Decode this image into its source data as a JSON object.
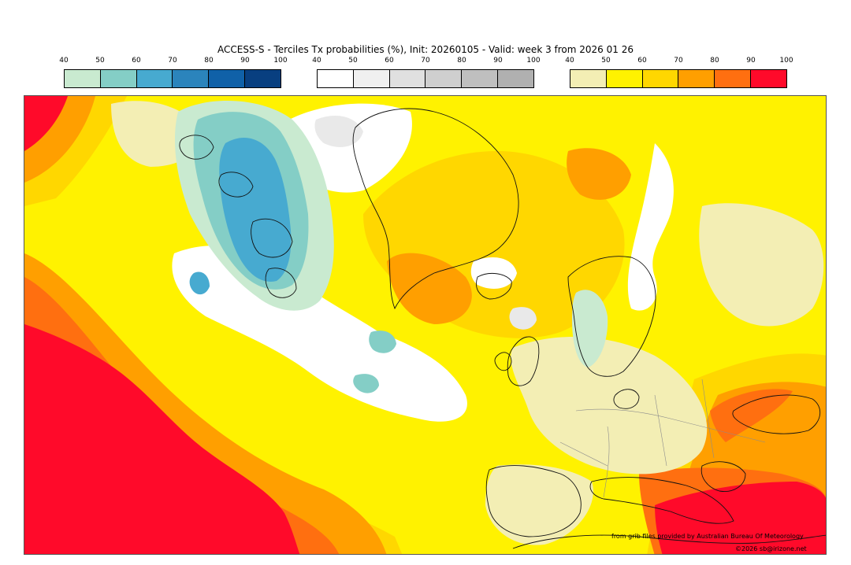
{
  "title": "ACCESS-S - Terciles Tx probabilities (%), Init: 20260105 - Valid: week 3 from 2026 01 26",
  "legends": [
    {
      "id": "below",
      "ticks": [
        "40",
        "50",
        "60",
        "70",
        "80",
        "90",
        "100"
      ],
      "colors": [
        "#c9ead0",
        "#84cec6",
        "#47aad0",
        "#2b84bc",
        "#1061a8",
        "#083f80"
      ]
    },
    {
      "id": "normal",
      "ticks": [
        "40",
        "50",
        "60",
        "70",
        "80",
        "90",
        "100"
      ],
      "colors": [
        "#ffffff",
        "#f0f0f0",
        "#e0e0e0",
        "#cfcfcf",
        "#bfbfbf",
        "#b0b0b0"
      ]
    },
    {
      "id": "above",
      "ticks": [
        "40",
        "50",
        "60",
        "70",
        "80",
        "90",
        "100"
      ],
      "colors": [
        "#f3eeb4",
        "#fff200",
        "#ffd700",
        "#ff9f00",
        "#ff6f10",
        "#ff0a2a"
      ]
    }
  ],
  "credits": {
    "source": "from grib files provided by Australian Bureau Of Meteorology",
    "copyright": "©2026 sb@irizone.net"
  }
}
